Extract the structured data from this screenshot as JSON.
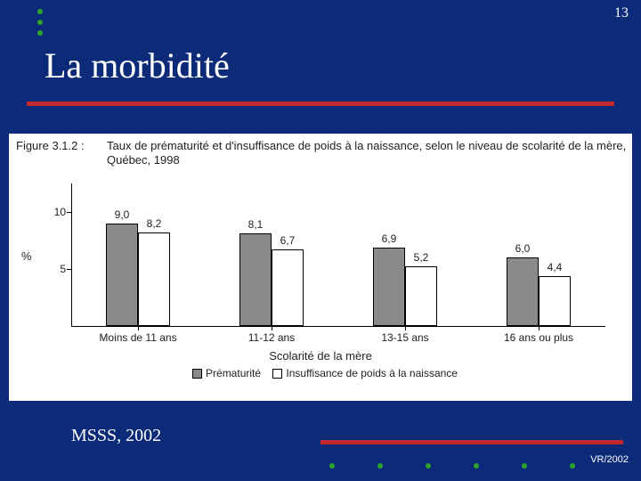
{
  "slide": {
    "background_color": "#0b2a78",
    "accent_color": "#c1272d",
    "bullet_color": "#2fa12f",
    "page_number": "13",
    "title": "La morbidité",
    "source_label": "MSSS, 2002",
    "footer_code": "VR/2002"
  },
  "chart": {
    "type": "bar",
    "figure_label": "Figure 3.1.2 :",
    "caption": "Taux de prématurité et d'insuffisance de poids à la naissance, selon le niveau de scolarité de la mère, Québec, 1998",
    "y_label": "%",
    "ylim": [
      0,
      12.5
    ],
    "yticks": [
      {
        "pos": 5,
        "label": "5"
      },
      {
        "pos": 10,
        "label": "10"
      }
    ],
    "x_label": "Scolarité de la mère",
    "categories": [
      "Moins de 11 ans",
      "11-12 ans",
      "13-15 ans",
      "16 ans ou plus"
    ],
    "series": [
      {
        "name": "Prématurité",
        "color": "#8a8a8a",
        "values": [
          9.0,
          8.1,
          6.9,
          6.0
        ],
        "labels": [
          "9,0",
          "8,1",
          "6,9",
          "6,0"
        ]
      },
      {
        "name": "Insuffisance de poids à la naissance",
        "color": "#ffffff",
        "values": [
          8.2,
          6.7,
          5.2,
          4.4
        ],
        "labels": [
          "8,2",
          "6,7",
          "5,2",
          "4,4"
        ]
      }
    ],
    "bar_border": "#000000",
    "background": "#ffffff",
    "tick_fontsize": 12,
    "label_fontsize": 13
  }
}
